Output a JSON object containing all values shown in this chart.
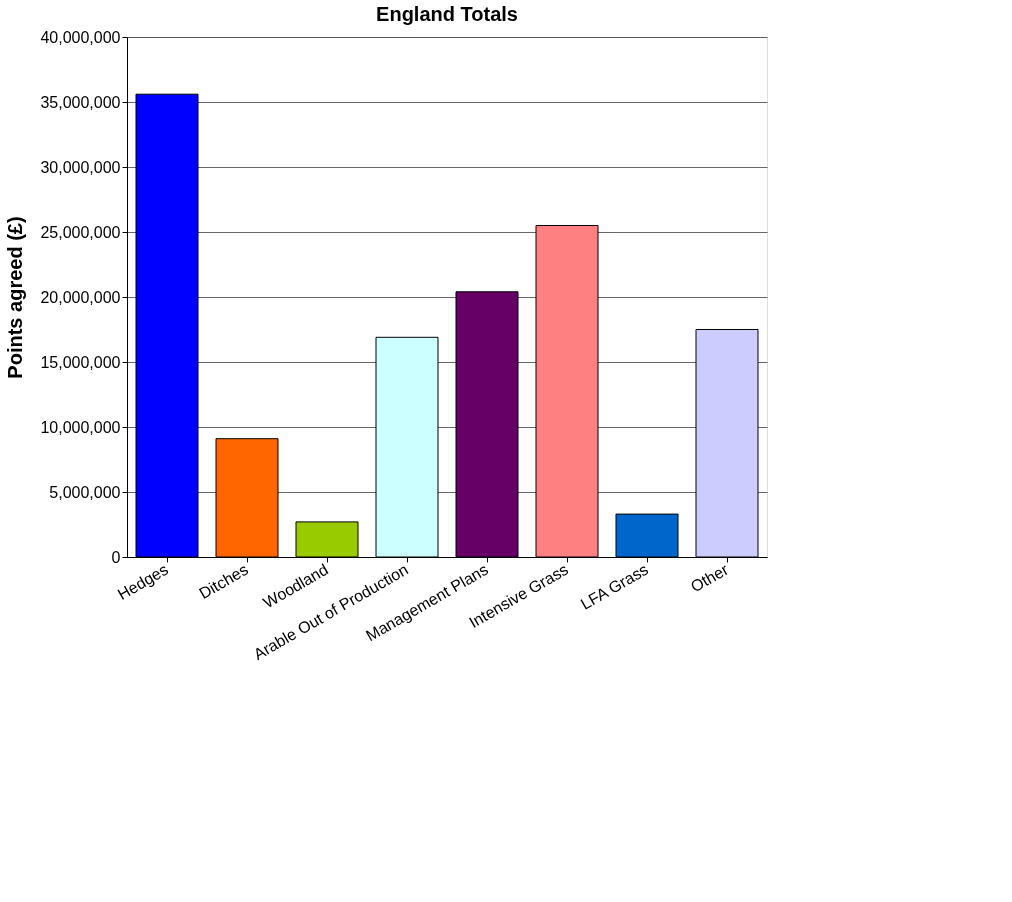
{
  "chart_data": {
    "type": "bar",
    "title": "England Totals",
    "ylabel": "Points agreed (£)",
    "categories": [
      "Hedges",
      "Ditches",
      "Woodland",
      "Arable Out of Production",
      "Management Plans",
      "Intensive Grass",
      "LFA Grass",
      "Other"
    ],
    "values": [
      35600000,
      9100000,
      2700000,
      16900000,
      20400000,
      25500000,
      3300000,
      17500000
    ],
    "colors": [
      "#0000ff",
      "#ff6600",
      "#99cc00",
      "#ccffff",
      "#660066",
      "#ff8080",
      "#0066cc",
      "#ccccff"
    ],
    "ylim": [
      0,
      40000000
    ],
    "yticks": [
      0,
      {
        "value": 5000000,
        "label": "5,000,000"
      },
      {
        "value": 10000000,
        "label": "10,000,000"
      },
      {
        "value": 15000000,
        "label": "15,000,000"
      },
      {
        "value": 20000000,
        "label": "20,000,000"
      },
      {
        "value": 25000000,
        "label": "25,000,000"
      },
      {
        "value": 30000000,
        "label": "30,000,000"
      },
      {
        "value": 35000000,
        "label": "35,000,000"
      },
      {
        "value": 40000000,
        "label": "40,000,000"
      }
    ],
    "grid": "y"
  }
}
